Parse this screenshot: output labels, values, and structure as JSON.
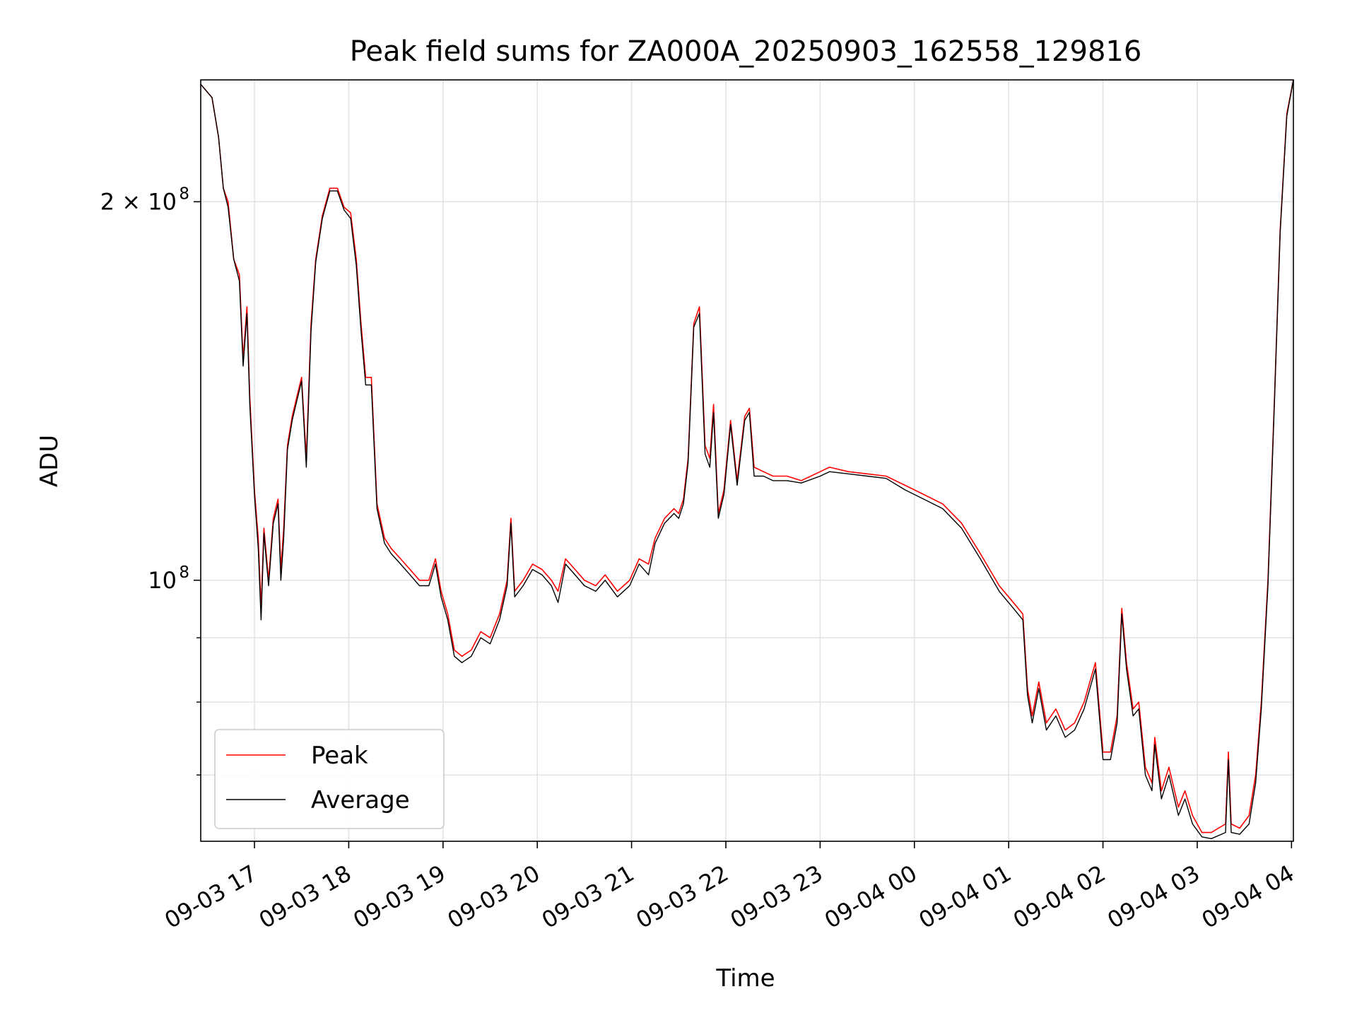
{
  "chart_data": {
    "type": "line",
    "title": "Peak field sums for ZA000A_20250903_162558_129816",
    "xlabel": "Time",
    "ylabel": "ADU",
    "yscale": "log",
    "ylim": [
      62000000,
      250000000
    ],
    "xlim": [
      -0.57,
      11.02
    ],
    "x_unit": "hours after 09-03 17:00",
    "x_ticks": [
      {
        "x": 0,
        "label": "09-03 17"
      },
      {
        "x": 1,
        "label": "09-03 18"
      },
      {
        "x": 2,
        "label": "09-03 19"
      },
      {
        "x": 3,
        "label": "09-03 20"
      },
      {
        "x": 4,
        "label": "09-03 21"
      },
      {
        "x": 5,
        "label": "09-03 22"
      },
      {
        "x": 6,
        "label": "09-03 23"
      },
      {
        "x": 7,
        "label": "09-04 00"
      },
      {
        "x": 8,
        "label": "09-04 01"
      },
      {
        "x": 9,
        "label": "09-04 02"
      },
      {
        "x": 10,
        "label": "09-04 03"
      },
      {
        "x": 11,
        "label": "09-04 04"
      }
    ],
    "y_major_ticks": [
      {
        "y": 100000000,
        "label": "10",
        "exp": "8"
      },
      {
        "y": 200000000,
        "label": "2 × 10",
        "exp": "8"
      }
    ],
    "y_minor_ticks": [
      70000000,
      80000000,
      90000000
    ],
    "grid": true,
    "legend_position": "lower-left",
    "series": [
      {
        "name": "Peak",
        "color": "#ff0000",
        "points": [
          [
            -0.57,
            248000000
          ],
          [
            -0.45,
            242000000
          ],
          [
            -0.38,
            225000000
          ],
          [
            -0.33,
            205000000
          ],
          [
            -0.28,
            200000000
          ],
          [
            -0.22,
            180000000
          ],
          [
            -0.16,
            175000000
          ],
          [
            -0.12,
            150000000
          ],
          [
            -0.08,
            165000000
          ],
          [
            -0.05,
            140000000
          ],
          [
            0.0,
            118000000
          ],
          [
            0.04,
            108000000
          ],
          [
            0.07,
            95000000
          ],
          [
            0.1,
            110000000
          ],
          [
            0.15,
            100000000
          ],
          [
            0.2,
            112000000
          ],
          [
            0.25,
            116000000
          ],
          [
            0.28,
            102000000
          ],
          [
            0.31,
            110000000
          ],
          [
            0.35,
            128000000
          ],
          [
            0.4,
            135000000
          ],
          [
            0.45,
            140000000
          ],
          [
            0.5,
            145000000
          ],
          [
            0.55,
            125000000
          ],
          [
            0.6,
            160000000
          ],
          [
            0.65,
            180000000
          ],
          [
            0.72,
            195000000
          ],
          [
            0.8,
            205000000
          ],
          [
            0.88,
            205000000
          ],
          [
            0.95,
            198000000
          ],
          [
            1.02,
            196000000
          ],
          [
            1.08,
            180000000
          ],
          [
            1.13,
            160000000
          ],
          [
            1.18,
            145000000
          ],
          [
            1.24,
            145000000
          ],
          [
            1.3,
            115000000
          ],
          [
            1.38,
            108000000
          ],
          [
            1.45,
            106000000
          ],
          [
            1.55,
            104000000
          ],
          [
            1.65,
            102000000
          ],
          [
            1.75,
            100000000
          ],
          [
            1.85,
            100000000
          ],
          [
            1.92,
            104000000
          ],
          [
            1.98,
            98000000
          ],
          [
            2.05,
            94000000
          ],
          [
            2.12,
            88000000
          ],
          [
            2.2,
            87000000
          ],
          [
            2.3,
            88000000
          ],
          [
            2.4,
            91000000
          ],
          [
            2.5,
            90000000
          ],
          [
            2.6,
            94000000
          ],
          [
            2.68,
            100000000
          ],
          [
            2.72,
            112000000
          ],
          [
            2.76,
            98000000
          ],
          [
            2.85,
            100000000
          ],
          [
            2.95,
            103000000
          ],
          [
            3.05,
            102000000
          ],
          [
            3.15,
            100000000
          ],
          [
            3.22,
            98000000
          ],
          [
            3.3,
            104000000
          ],
          [
            3.4,
            102000000
          ],
          [
            3.5,
            100000000
          ],
          [
            3.62,
            99000000
          ],
          [
            3.72,
            101000000
          ],
          [
            3.85,
            98000000
          ],
          [
            3.98,
            100000000
          ],
          [
            4.08,
            104000000
          ],
          [
            4.18,
            103000000
          ],
          [
            4.25,
            108000000
          ],
          [
            4.35,
            112000000
          ],
          [
            4.45,
            114000000
          ],
          [
            4.5,
            113000000
          ],
          [
            4.55,
            116000000
          ],
          [
            4.6,
            125000000
          ],
          [
            4.66,
            160000000
          ],
          [
            4.72,
            165000000
          ],
          [
            4.78,
            128000000
          ],
          [
            4.83,
            125000000
          ],
          [
            4.87,
            138000000
          ],
          [
            4.92,
            113000000
          ],
          [
            4.98,
            118000000
          ],
          [
            5.05,
            134000000
          ],
          [
            5.12,
            120000000
          ],
          [
            5.2,
            135000000
          ],
          [
            5.25,
            137000000
          ],
          [
            5.3,
            123000000
          ],
          [
            5.4,
            122000000
          ],
          [
            5.5,
            121000000
          ],
          [
            5.65,
            121000000
          ],
          [
            5.8,
            120000000
          ],
          [
            6.0,
            122000000
          ],
          [
            6.1,
            123000000
          ],
          [
            6.3,
            122000000
          ],
          [
            6.5,
            121500000
          ],
          [
            6.7,
            121000000
          ],
          [
            6.9,
            119000000
          ],
          [
            7.1,
            117000000
          ],
          [
            7.3,
            115000000
          ],
          [
            7.5,
            111000000
          ],
          [
            7.7,
            105000000
          ],
          [
            7.9,
            99000000
          ],
          [
            8.05,
            96000000
          ],
          [
            8.15,
            94000000
          ],
          [
            8.2,
            82000000
          ],
          [
            8.25,
            78000000
          ],
          [
            8.32,
            83000000
          ],
          [
            8.4,
            77000000
          ],
          [
            8.5,
            79000000
          ],
          [
            8.6,
            76000000
          ],
          [
            8.7,
            77000000
          ],
          [
            8.8,
            80000000
          ],
          [
            8.92,
            86000000
          ],
          [
            9.0,
            73000000
          ],
          [
            9.08,
            73000000
          ],
          [
            9.15,
            78000000
          ],
          [
            9.2,
            95000000
          ],
          [
            9.25,
            86000000
          ],
          [
            9.32,
            79000000
          ],
          [
            9.38,
            80000000
          ],
          [
            9.45,
            71000000
          ],
          [
            9.52,
            69000000
          ],
          [
            9.55,
            75000000
          ],
          [
            9.62,
            68000000
          ],
          [
            9.7,
            71000000
          ],
          [
            9.8,
            66000000
          ],
          [
            9.87,
            68000000
          ],
          [
            9.95,
            65000000
          ],
          [
            10.05,
            63000000
          ],
          [
            10.15,
            63000000
          ],
          [
            10.3,
            64000000
          ],
          [
            10.33,
            73000000
          ],
          [
            10.36,
            64000000
          ],
          [
            10.45,
            63500000
          ],
          [
            10.55,
            65000000
          ],
          [
            10.62,
            70000000
          ],
          [
            10.68,
            80000000
          ],
          [
            10.75,
            100000000
          ],
          [
            10.82,
            140000000
          ],
          [
            10.88,
            190000000
          ],
          [
            10.95,
            235000000
          ],
          [
            11.02,
            250000000
          ]
        ]
      },
      {
        "name": "Average",
        "color": "#000000",
        "points": [
          [
            -0.57,
            248000000
          ],
          [
            -0.45,
            242000000
          ],
          [
            -0.38,
            225000000
          ],
          [
            -0.33,
            205000000
          ],
          [
            -0.28,
            198000000
          ],
          [
            -0.22,
            180000000
          ],
          [
            -0.16,
            173000000
          ],
          [
            -0.12,
            148000000
          ],
          [
            -0.08,
            163000000
          ],
          [
            -0.05,
            138000000
          ],
          [
            0.0,
            117000000
          ],
          [
            0.04,
            106000000
          ],
          [
            0.07,
            93000000
          ],
          [
            0.1,
            109000000
          ],
          [
            0.15,
            99000000
          ],
          [
            0.2,
            111000000
          ],
          [
            0.25,
            115000000
          ],
          [
            0.28,
            100000000
          ],
          [
            0.31,
            108000000
          ],
          [
            0.35,
            127000000
          ],
          [
            0.4,
            134000000
          ],
          [
            0.45,
            139000000
          ],
          [
            0.5,
            144000000
          ],
          [
            0.55,
            123000000
          ],
          [
            0.6,
            158000000
          ],
          [
            0.65,
            179000000
          ],
          [
            0.72,
            194000000
          ],
          [
            0.8,
            204000000
          ],
          [
            0.88,
            204000000
          ],
          [
            0.95,
            197000000
          ],
          [
            1.02,
            194000000
          ],
          [
            1.08,
            178000000
          ],
          [
            1.13,
            158000000
          ],
          [
            1.18,
            143000000
          ],
          [
            1.24,
            143000000
          ],
          [
            1.3,
            114000000
          ],
          [
            1.38,
            107000000
          ],
          [
            1.45,
            105000000
          ],
          [
            1.55,
            103000000
          ],
          [
            1.65,
            101000000
          ],
          [
            1.75,
            99000000
          ],
          [
            1.85,
            99000000
          ],
          [
            1.92,
            103000000
          ],
          [
            1.98,
            97000000
          ],
          [
            2.05,
            93000000
          ],
          [
            2.12,
            87000000
          ],
          [
            2.2,
            86000000
          ],
          [
            2.3,
            87000000
          ],
          [
            2.4,
            90000000
          ],
          [
            2.5,
            89000000
          ],
          [
            2.6,
            93000000
          ],
          [
            2.68,
            99000000
          ],
          [
            2.72,
            111000000
          ],
          [
            2.76,
            97000000
          ],
          [
            2.85,
            99000000
          ],
          [
            2.95,
            102000000
          ],
          [
            3.05,
            101000000
          ],
          [
            3.15,
            99000000
          ],
          [
            3.22,
            96000000
          ],
          [
            3.3,
            103000000
          ],
          [
            3.4,
            101000000
          ],
          [
            3.5,
            99000000
          ],
          [
            3.62,
            98000000
          ],
          [
            3.72,
            100000000
          ],
          [
            3.85,
            97000000
          ],
          [
            3.98,
            99000000
          ],
          [
            4.08,
            103000000
          ],
          [
            4.18,
            101000000
          ],
          [
            4.25,
            107000000
          ],
          [
            4.35,
            111000000
          ],
          [
            4.45,
            113000000
          ],
          [
            4.5,
            112000000
          ],
          [
            4.55,
            115000000
          ],
          [
            4.6,
            124000000
          ],
          [
            4.66,
            159000000
          ],
          [
            4.72,
            163000000
          ],
          [
            4.78,
            126000000
          ],
          [
            4.83,
            123000000
          ],
          [
            4.87,
            136000000
          ],
          [
            4.92,
            112000000
          ],
          [
            4.98,
            117000000
          ],
          [
            5.05,
            133000000
          ],
          [
            5.12,
            119000000
          ],
          [
            5.2,
            134000000
          ],
          [
            5.25,
            136000000
          ],
          [
            5.3,
            121000000
          ],
          [
            5.4,
            121000000
          ],
          [
            5.5,
            120000000
          ],
          [
            5.65,
            120000000
          ],
          [
            5.8,
            119500000
          ],
          [
            6.0,
            121000000
          ],
          [
            6.1,
            122000000
          ],
          [
            6.3,
            121500000
          ],
          [
            6.5,
            121000000
          ],
          [
            6.7,
            120500000
          ],
          [
            6.9,
            118000000
          ],
          [
            7.1,
            116000000
          ],
          [
            7.3,
            114000000
          ],
          [
            7.5,
            110000000
          ],
          [
            7.7,
            104000000
          ],
          [
            7.9,
            98000000
          ],
          [
            8.05,
            95000000
          ],
          [
            8.15,
            93000000
          ],
          [
            8.2,
            81000000
          ],
          [
            8.25,
            77000000
          ],
          [
            8.32,
            82000000
          ],
          [
            8.4,
            76000000
          ],
          [
            8.5,
            78000000
          ],
          [
            8.6,
            75000000
          ],
          [
            8.7,
            76000000
          ],
          [
            8.8,
            79000000
          ],
          [
            8.92,
            85000000
          ],
          [
            9.0,
            72000000
          ],
          [
            9.08,
            72000000
          ],
          [
            9.15,
            77000000
          ],
          [
            9.2,
            94000000
          ],
          [
            9.25,
            85000000
          ],
          [
            9.32,
            78000000
          ],
          [
            9.38,
            79000000
          ],
          [
            9.45,
            70000000
          ],
          [
            9.52,
            68000000
          ],
          [
            9.55,
            74000000
          ],
          [
            9.62,
            67000000
          ],
          [
            9.7,
            70000000
          ],
          [
            9.8,
            65000000
          ],
          [
            9.87,
            67000000
          ],
          [
            9.95,
            64000000
          ],
          [
            10.05,
            62500000
          ],
          [
            10.15,
            62300000
          ],
          [
            10.3,
            63000000
          ],
          [
            10.33,
            72000000
          ],
          [
            10.36,
            63000000
          ],
          [
            10.45,
            62800000
          ],
          [
            10.55,
            64000000
          ],
          [
            10.62,
            69000000
          ],
          [
            10.68,
            79000000
          ],
          [
            10.75,
            99000000
          ],
          [
            10.82,
            139000000
          ],
          [
            10.88,
            189000000
          ],
          [
            10.95,
            234000000
          ],
          [
            11.02,
            250000000
          ]
        ]
      }
    ]
  }
}
